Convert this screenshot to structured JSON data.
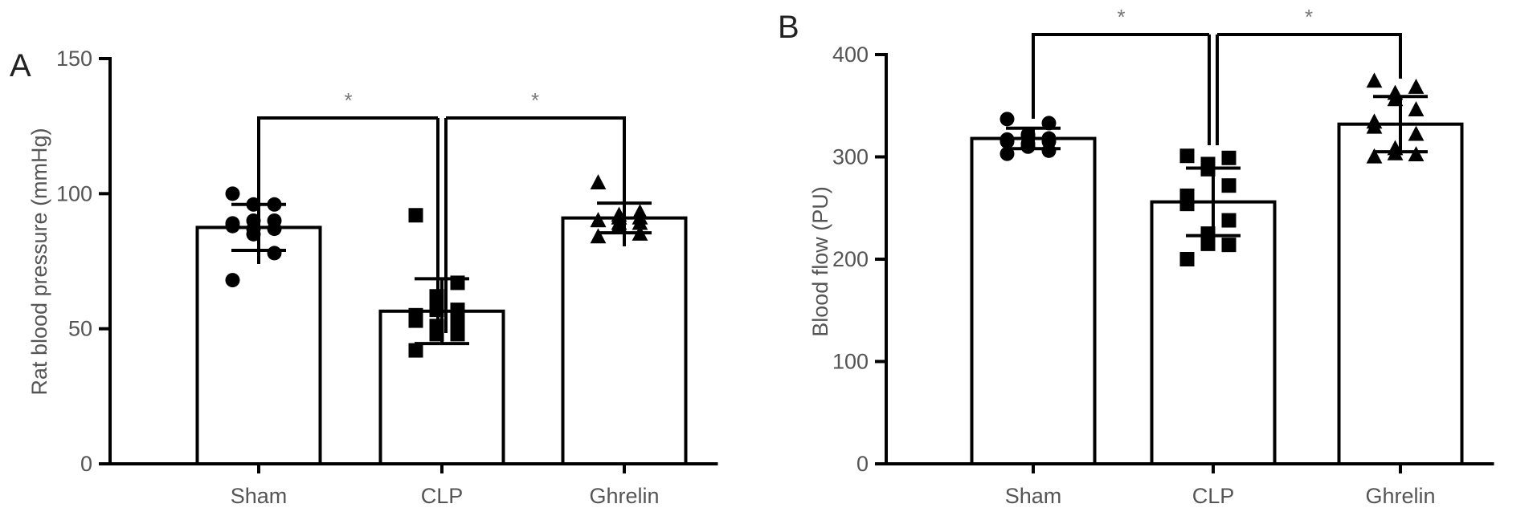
{
  "chart_data": [
    {
      "type": "bar",
      "panel_label": "A",
      "ylabel": "Rat blood pressure (mmHg)",
      "xlabel": "",
      "ylim": [
        0,
        150
      ],
      "yticks": [
        0,
        50,
        100,
        150
      ],
      "categories": [
        "Sham",
        "CLP",
        "Ghrelin"
      ],
      "values": [
        87.5,
        56.5,
        91
      ],
      "error": [
        8.5,
        12,
        5.5
      ],
      "marker_shapes": [
        "circle",
        "square",
        "triangle"
      ],
      "points": [
        [
          100,
          96,
          96,
          90,
          90,
          89,
          88,
          87,
          87,
          85,
          78,
          68
        ],
        [
          92,
          67,
          62,
          57,
          57,
          55,
          53,
          52,
          51,
          48,
          48,
          42
        ],
        [
          104,
          93,
          92,
          91,
          91,
          90,
          90,
          89,
          89,
          88,
          85,
          84
        ]
      ],
      "significance": [
        {
          "from": "CLP",
          "to": "Sham",
          "label": "*"
        },
        {
          "from": "CLP",
          "to": "Ghrelin",
          "label": "*"
        }
      ],
      "colors": {
        "bar_fill": "#ffffff",
        "stroke": "#000000",
        "marker": "#000000"
      }
    },
    {
      "type": "bar",
      "panel_label": "B",
      "ylabel": "Blood flow (PU)",
      "xlabel": "",
      "ylim": [
        0,
        400
      ],
      "yticks": [
        0,
        100,
        200,
        300,
        400
      ],
      "categories": [
        "Sham",
        "CLP",
        "Ghrelin"
      ],
      "values": [
        318,
        256,
        332
      ],
      "error": [
        10,
        33,
        27
      ],
      "marker_shapes": [
        "circle",
        "square",
        "triangle"
      ],
      "points": [
        [
          337,
          333,
          322,
          320,
          318,
          317,
          315,
          315,
          313,
          310,
          306,
          303
        ],
        [
          301,
          299,
          293,
          288,
          272,
          262,
          254,
          238,
          225,
          215,
          214,
          200
        ],
        [
          374,
          368,
          362,
          356,
          346,
          334,
          329,
          322,
          308,
          303,
          302,
          300
        ]
      ],
      "significance": [
        {
          "from": "CLP",
          "to": "Sham",
          "label": "*"
        },
        {
          "from": "CLP",
          "to": "Ghrelin",
          "label": "*"
        }
      ],
      "colors": {
        "bar_fill": "#ffffff",
        "stroke": "#000000",
        "marker": "#000000"
      }
    }
  ]
}
